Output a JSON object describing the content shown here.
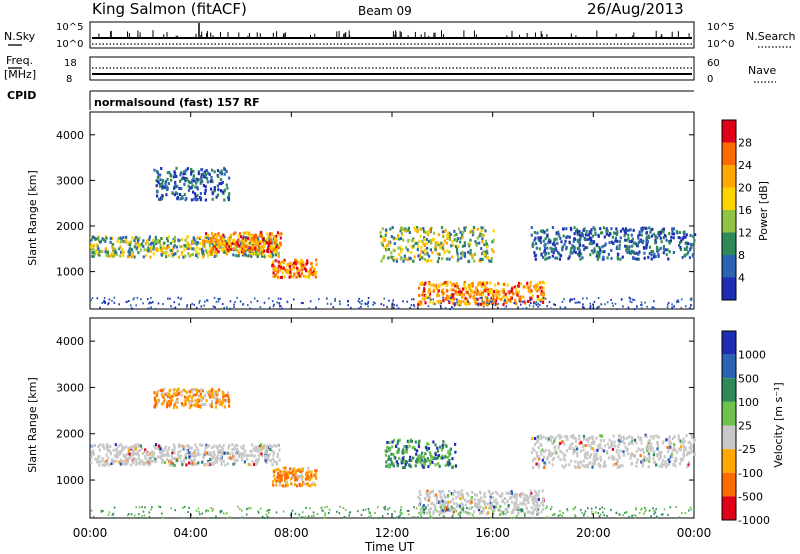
{
  "header": {
    "station": "King Salmon (fitACF)",
    "beam": "Beam 09",
    "date": "26/Aug/2013"
  },
  "status_panels": {
    "nsky_label": "N.Sky",
    "nsky_ticks": [
      "10^5",
      "10^0"
    ],
    "nsearch_label": "N.Search",
    "nsearch_ticks": [
      "10^5",
      "10^0"
    ],
    "freq_label_line1": "Freq.",
    "freq_label_line2": "[MHz]",
    "freq_ticks": [
      "18",
      "8"
    ],
    "nave_label": "Nave",
    "nave_ticks": [
      "60",
      "0"
    ],
    "cpid_label": "CPID",
    "cpid_text": "normalsound (fast) 157 RF"
  },
  "chart_data": [
    {
      "type": "heatmap",
      "panel": "power",
      "ylabel": "Slant Range [km]",
      "xlabel": "",
      "colorbar_label": "Power [dB]",
      "colorbar_ticks": [
        "28",
        "24",
        "20",
        "16",
        "12",
        "8",
        "4"
      ],
      "colorbar_colors": [
        "#e0001a",
        "#ff6a00",
        "#ffa800",
        "#ffd300",
        "#8fc341",
        "#2e8b57",
        "#2c64b4",
        "#1e2eb4"
      ],
      "ylim": [
        180,
        4500
      ],
      "yticks": [
        "4000",
        "3000",
        "2000",
        "1000"
      ],
      "xlim": [
        "00:00",
        "24:00"
      ],
      "echo_bands": [
        {
          "t0": 0.0,
          "t1": 7.5,
          "r0": 1350,
          "r1": 1800,
          "level": "mid"
        },
        {
          "t0": 4.5,
          "t1": 7.6,
          "r0": 1450,
          "r1": 1900,
          "level": "high"
        },
        {
          "t0": 2.5,
          "t1": 5.5,
          "r0": 2600,
          "r1": 3300,
          "level": "low"
        },
        {
          "t0": 7.2,
          "t1": 9.0,
          "r0": 900,
          "r1": 1300,
          "level": "high"
        },
        {
          "t0": 11.5,
          "t1": 16.0,
          "r0": 1250,
          "r1": 2000,
          "level": "mid"
        },
        {
          "t0": 13.0,
          "t1": 18.0,
          "r0": 300,
          "r1": 800,
          "level": "high"
        },
        {
          "t0": 17.5,
          "t1": 24.0,
          "r0": 1300,
          "r1": 2000,
          "level": "low"
        }
      ]
    },
    {
      "type": "heatmap",
      "panel": "velocity",
      "ylabel": "Slant Range [km]",
      "xlabel": "Time UT",
      "colorbar_label": "Velocity [m s⁻¹]",
      "colorbar_ticks": [
        "1000",
        "500",
        "100",
        "25",
        "-25",
        "-100",
        "-500",
        "-1000"
      ],
      "colorbar_colors": [
        "#1e2eb4",
        "#2c64b4",
        "#2e8b57",
        "#6cc24a",
        "#c8c8c8",
        "#ffa800",
        "#ff6a00",
        "#e0001a"
      ],
      "ylim": [
        180,
        4500
      ],
      "yticks": [
        "4000",
        "3000",
        "2000",
        "1000"
      ],
      "xticks": [
        "00:00",
        "04:00",
        "08:00",
        "12:00",
        "16:00",
        "20:00",
        "00:00"
      ],
      "echo_bands": [
        {
          "t0": 0.0,
          "t1": 7.5,
          "r0": 1350,
          "r1": 1800,
          "level": "gray"
        },
        {
          "t0": 2.5,
          "t1": 5.5,
          "r0": 2600,
          "r1": 3000,
          "level": "orange"
        },
        {
          "t0": 7.2,
          "t1": 9.0,
          "r0": 900,
          "r1": 1300,
          "level": "orange"
        },
        {
          "t0": 11.7,
          "t1": 14.5,
          "r0": 1300,
          "r1": 1900,
          "level": "green"
        },
        {
          "t0": 13.0,
          "t1": 18.0,
          "r0": 300,
          "r1": 800,
          "level": "gray"
        },
        {
          "t0": 17.5,
          "t1": 24.0,
          "r0": 1300,
          "r1": 2000,
          "level": "gray"
        }
      ]
    }
  ]
}
